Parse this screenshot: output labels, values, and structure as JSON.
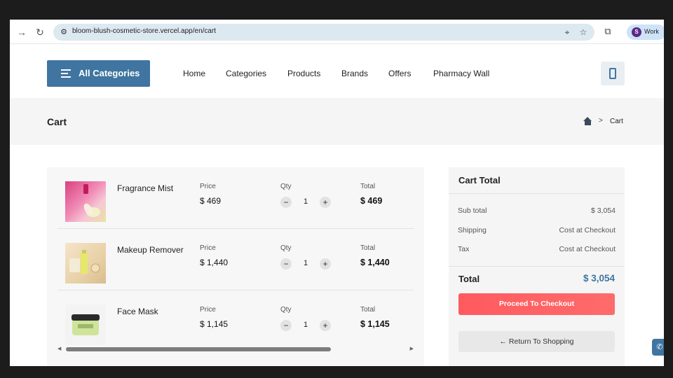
{
  "browser": {
    "url": "bloom-blush-cosmetic-store.vercel.app/en/cart",
    "profile_initial": "S",
    "profile_label": "Work"
  },
  "header": {
    "all_categories_label": "All Categories",
    "nav": [
      "Home",
      "Categories",
      "Products",
      "Brands",
      "Offers",
      "Pharmacy Wall"
    ]
  },
  "page": {
    "title": "Cart",
    "breadcrumb_sep": ">",
    "breadcrumb_current": "Cart"
  },
  "cart": {
    "price_header": "Price",
    "qty_header": "Qty",
    "total_header": "Total",
    "items": [
      {
        "name": "Fragrance Mist",
        "price": "$ 469",
        "qty": "1",
        "total": "$ 469"
      },
      {
        "name": "Makeup Remover",
        "price": "$ 1,440",
        "qty": "1",
        "total": "$ 1,440"
      },
      {
        "name": "Face Mask",
        "price": "$ 1,145",
        "qty": "1",
        "total": "$ 1,145"
      }
    ],
    "scroll_position_percent": 75
  },
  "summary": {
    "title": "Cart Total",
    "subtotal_label": "Sub total",
    "subtotal_value": "$ 3,054",
    "shipping_label": "Shipping",
    "shipping_value": "Cost at Checkout",
    "tax_label": "Tax",
    "tax_value": "Cost at Checkout",
    "total_label": "Total",
    "total_value": "$ 3,054",
    "checkout_label": "Proceed To Checkout",
    "return_label": "Return To Shopping"
  },
  "colors": {
    "brand": "#3f75a0",
    "checkout": "#ff5a5f"
  }
}
